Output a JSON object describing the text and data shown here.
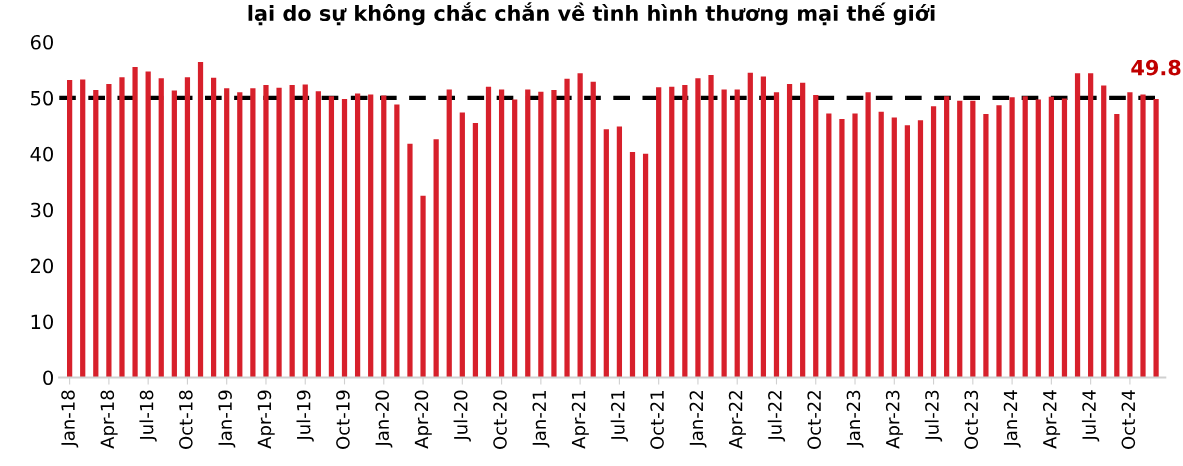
{
  "chart_data": {
    "type": "bar",
    "title": "lại do sự không chắc chắn về tình hình thương mại thế giới",
    "categories": [
      "Jan-18",
      null,
      null,
      "Apr-18",
      null,
      null,
      "Jul-18",
      null,
      null,
      "Oct-18",
      null,
      null,
      "Jan-19",
      null,
      null,
      "Apr-19",
      null,
      null,
      "Jul-19",
      null,
      null,
      "Oct-19",
      null,
      null,
      "Jan-20",
      null,
      null,
      "Apr-20",
      null,
      null,
      "Jul-20",
      null,
      null,
      "Oct-20",
      null,
      null,
      "Jan-21",
      null,
      null,
      "Apr-21",
      null,
      null,
      "Jul-21",
      null,
      null,
      "Oct-21",
      null,
      null,
      "Jan-22",
      null,
      null,
      "Apr-22",
      null,
      null,
      "Jul-22",
      null,
      null,
      "Oct-22",
      null,
      null,
      "Jan-23",
      null,
      null,
      "Apr-23",
      null,
      null,
      "Jul-23",
      null,
      null,
      "Oct-23",
      null,
      null,
      "Jan-24",
      null,
      null,
      "Apr-24",
      null,
      null,
      "Jul-24",
      null,
      null,
      "Oct-24",
      null,
      null
    ],
    "values": [
      53.2,
      53.3,
      51.4,
      52.5,
      53.7,
      55.5,
      54.7,
      53.5,
      51.3,
      53.7,
      56.4,
      53.6,
      51.7,
      51.0,
      51.7,
      52.3,
      51.8,
      52.3,
      52.4,
      51.2,
      50.3,
      49.8,
      50.8,
      50.6,
      50.4,
      48.8,
      41.8,
      32.5,
      42.6,
      51.5,
      47.4,
      45.5,
      52.0,
      51.5,
      49.7,
      51.5,
      51.1,
      51.4,
      53.4,
      54.4,
      52.9,
      44.4,
      44.9,
      40.3,
      40.0,
      51.9,
      52.0,
      52.3,
      53.5,
      54.1,
      51.5,
      51.5,
      54.5,
      53.8,
      51.0,
      52.5,
      52.7,
      50.5,
      47.2,
      46.2,
      47.2,
      51.0,
      47.5,
      46.5,
      45.1,
      46.0,
      48.5,
      50.3,
      49.5,
      49.5,
      47.1,
      48.7,
      50.1,
      50.3,
      49.7,
      50.2,
      49.9,
      54.4,
      54.4,
      52.2,
      47.1,
      51.0,
      50.6,
      49.8
    ],
    "value_labels": [
      null,
      null,
      null,
      null,
      null,
      null,
      null,
      null,
      null,
      null,
      null,
      null,
      null,
      null,
      null,
      null,
      null,
      null,
      null,
      null,
      null,
      null,
      null,
      null,
      null,
      null,
      null,
      null,
      null,
      null,
      null,
      null,
      null,
      null,
      null,
      null,
      null,
      null,
      null,
      null,
      null,
      null,
      null,
      null,
      null,
      null,
      null,
      null,
      null,
      null,
      null,
      null,
      null,
      null,
      null,
      null,
      null,
      null,
      null,
      null,
      null,
      null,
      null,
      null,
      null,
      null,
      null,
      null,
      null,
      null,
      null,
      null,
      null,
      null,
      null,
      null,
      null,
      null,
      null,
      null,
      null,
      null,
      null,
      "49.8"
    ],
    "color": "#d7202b",
    "ylim": [
      0,
      60
    ],
    "yticks": [
      0,
      10,
      20,
      30,
      40,
      50,
      60
    ],
    "ref_lines": [
      {
        "axis": "y",
        "value": 50,
        "color": "#000000",
        "line_style": "dashed"
      }
    ],
    "grid": false,
    "legend": false
  }
}
